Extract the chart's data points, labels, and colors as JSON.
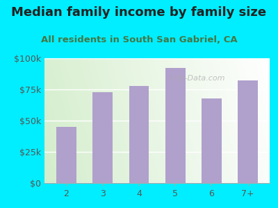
{
  "title": "Median family income by family size",
  "subtitle": "All residents in South San Gabriel, CA",
  "categories": [
    "2",
    "3",
    "4",
    "5",
    "6",
    "7+"
  ],
  "values": [
    45000,
    73000,
    78000,
    92000,
    68000,
    82000
  ],
  "bar_color": "#b0a0cc",
  "background_outer": "#00eeff",
  "background_inner_grad_bottom_left": "#d4eecc",
  "background_inner_grad_top_right": "#eaf8f8",
  "title_color": "#222222",
  "subtitle_color": "#447744",
  "tick_label_color": "#555555",
  "ylim": [
    0,
    100000
  ],
  "yticks": [
    0,
    25000,
    50000,
    75000,
    100000
  ],
  "ytick_labels": [
    "$0",
    "$25k",
    "$50k",
    "$75k",
    "$100k"
  ],
  "watermark": "City-Data.com",
  "title_fontsize": 13,
  "subtitle_fontsize": 9.5,
  "tick_fontsize": 9
}
